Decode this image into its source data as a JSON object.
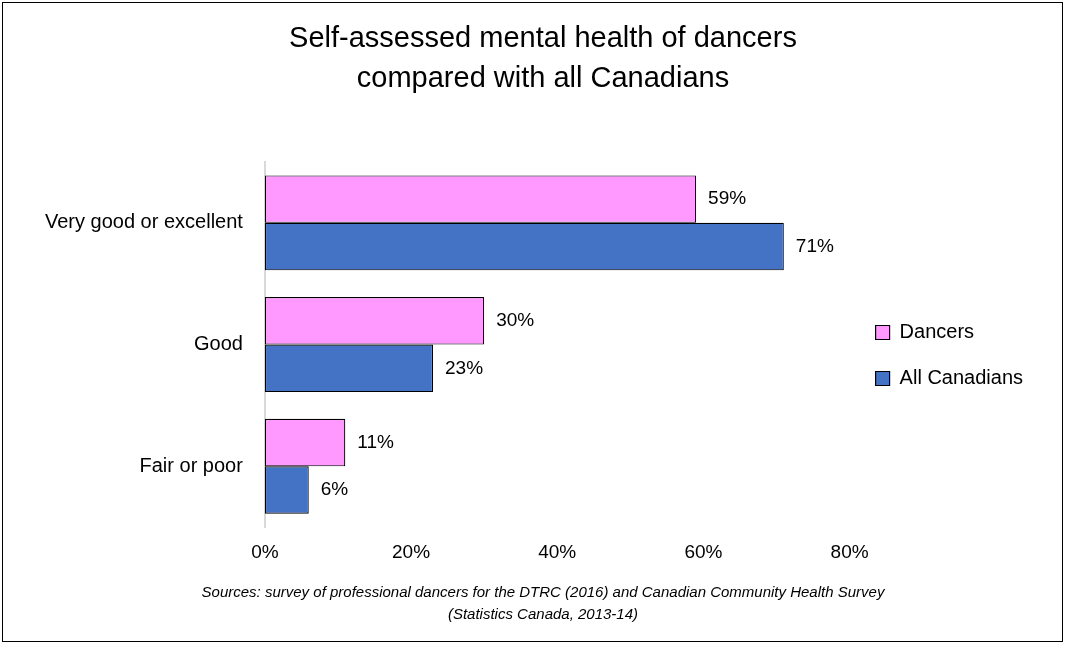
{
  "chart_data": {
    "type": "bar",
    "orientation": "horizontal",
    "title": "Self-assessed mental health of dancers compared with all Canadians",
    "categories": [
      "Very good or excellent",
      "Good",
      "Fair or poor"
    ],
    "series": [
      {
        "name": "Dancers",
        "color": "#ff99ff",
        "values": [
          59,
          30,
          11
        ],
        "value_labels": [
          "59%",
          "30%",
          "11%"
        ]
      },
      {
        "name": "All Canadians",
        "color": "#4472c4",
        "values": [
          71,
          23,
          6
        ],
        "value_labels": [
          "71%",
          "23%",
          "6%"
        ]
      }
    ],
    "xlim": [
      0,
      80
    ],
    "xticks": [
      {
        "value": 0,
        "label": "0%"
      },
      {
        "value": 20,
        "label": "20%"
      },
      {
        "value": 40,
        "label": "40%"
      },
      {
        "value": 60,
        "label": "60%"
      },
      {
        "value": 80,
        "label": "80%"
      }
    ],
    "grid": false,
    "legend": "right",
    "annotations": [
      "Sources: survey of professional dancers for the DTRC (2016) and Canadian Community Health Survey (Statistics Canada, 2013-14)"
    ]
  }
}
